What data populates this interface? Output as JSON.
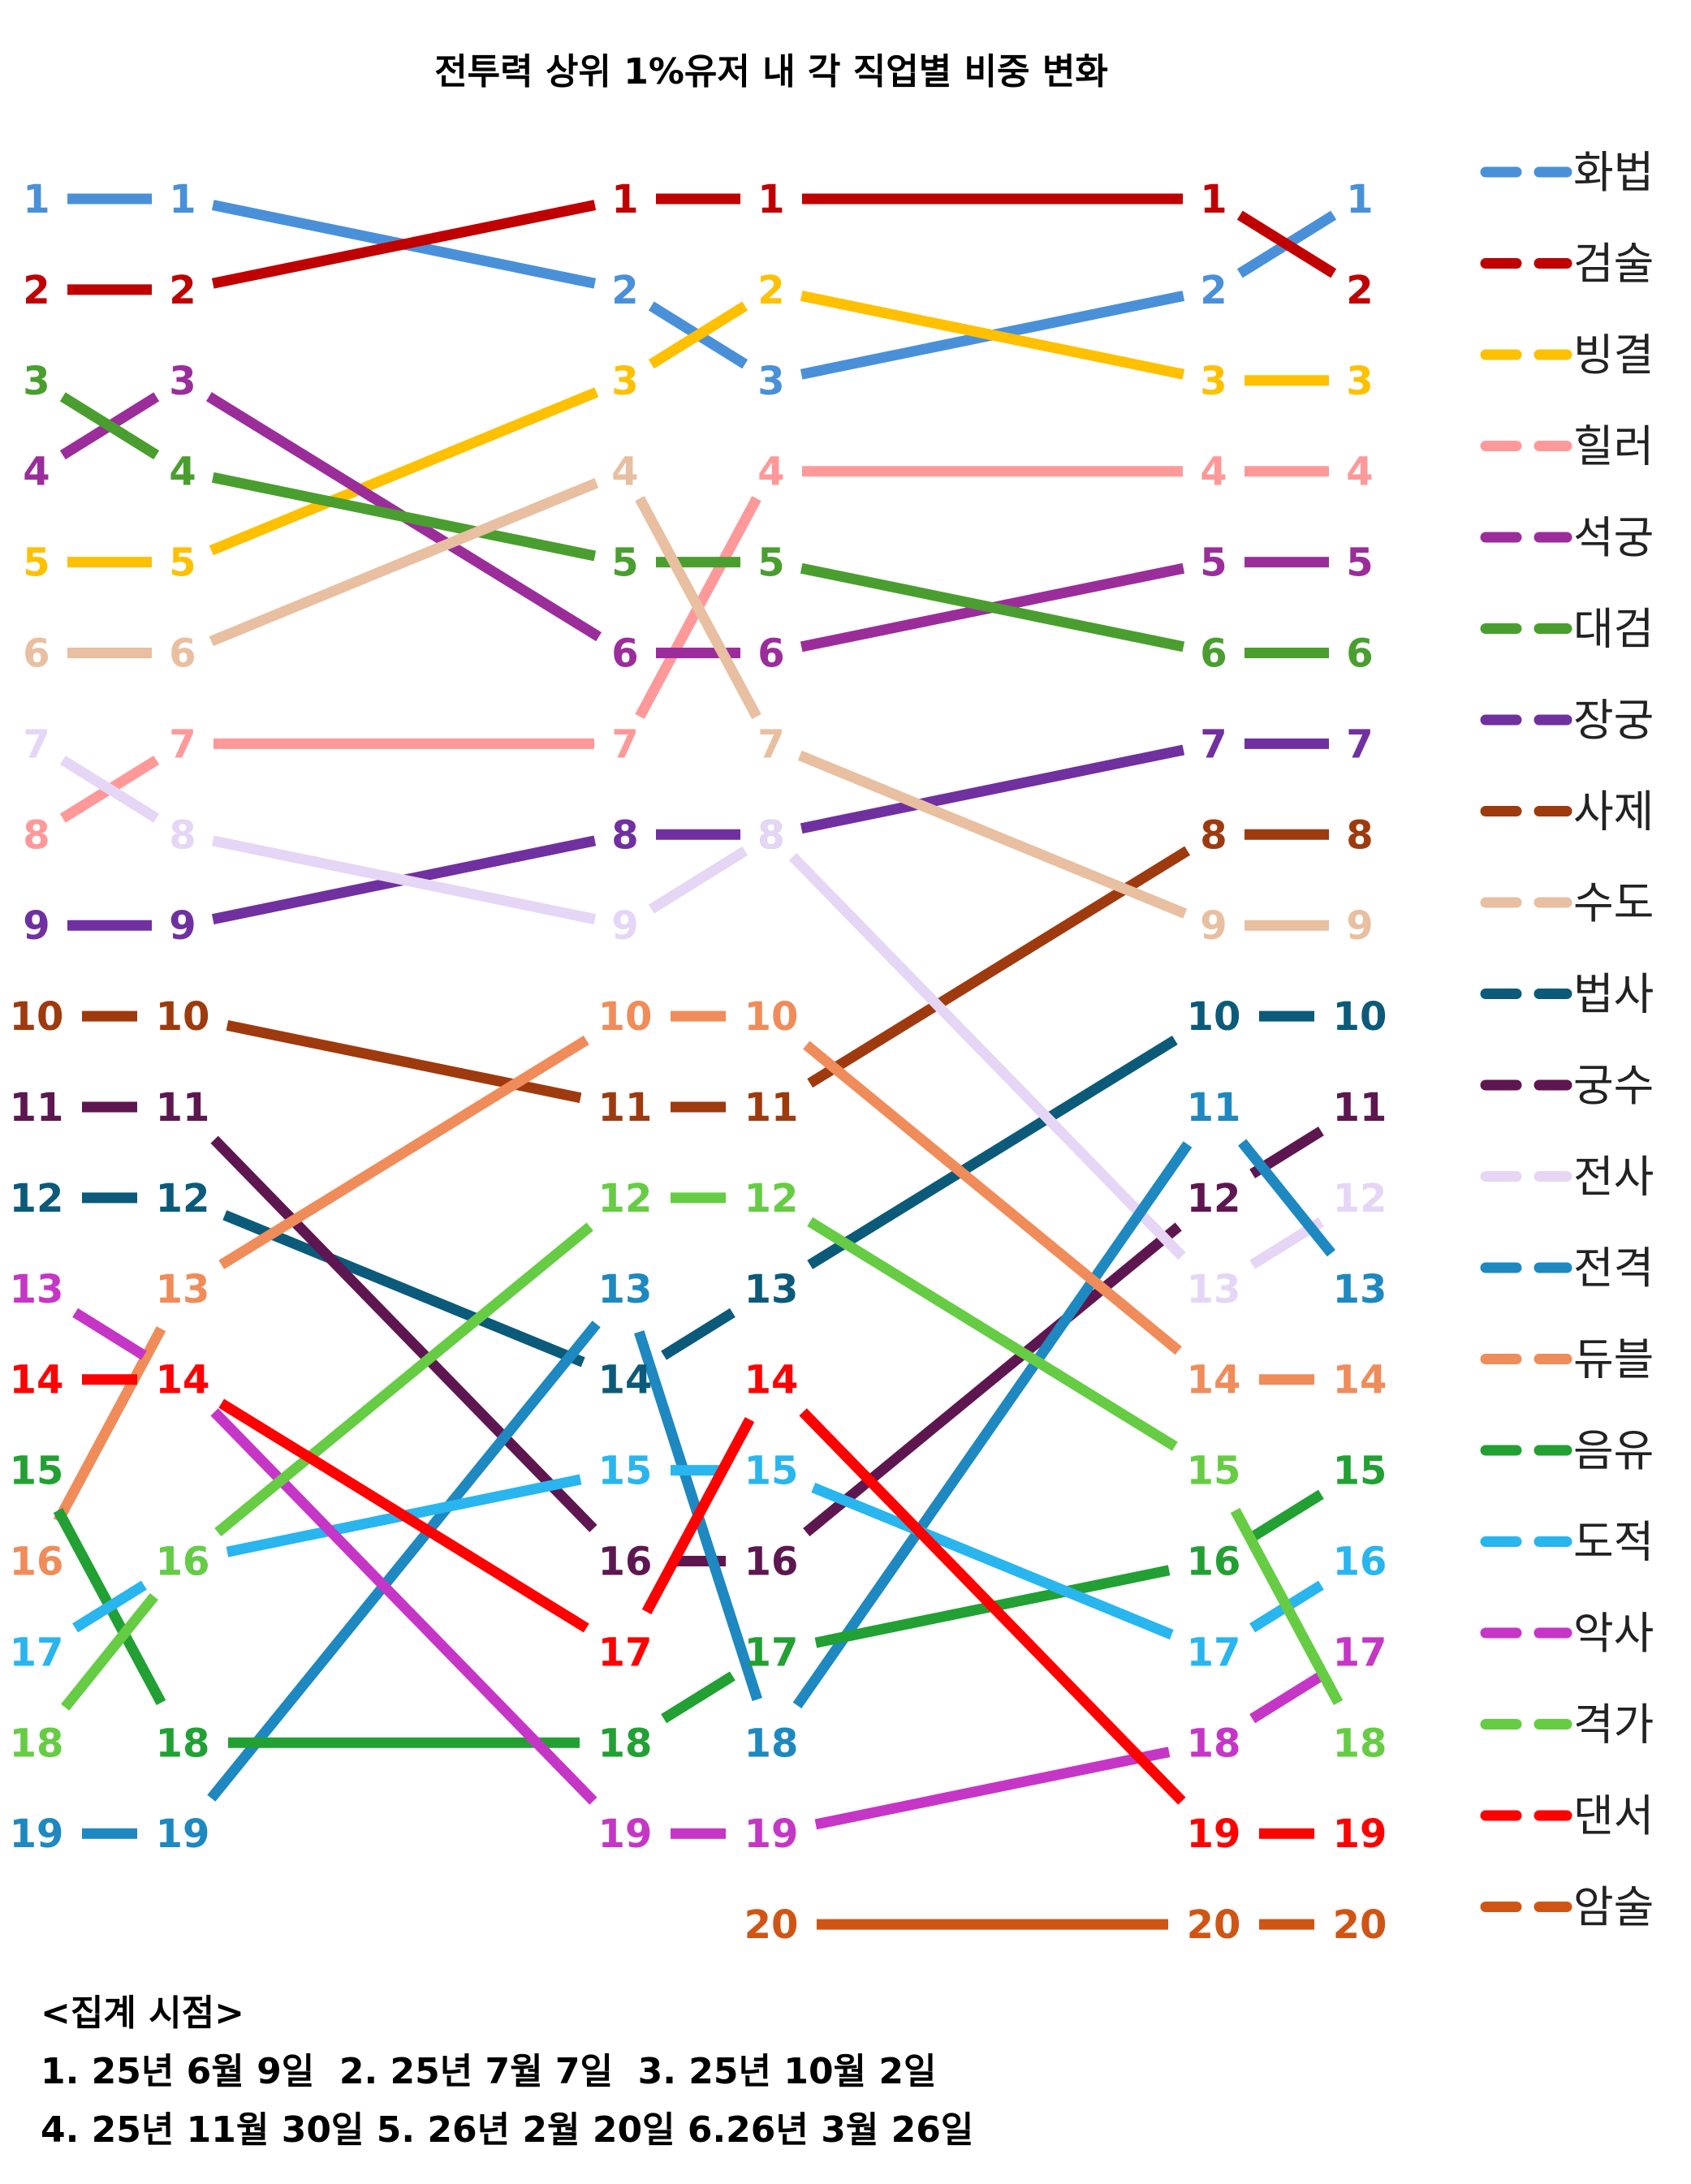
{
  "chart_data": {
    "type": "line",
    "title": "전투력 상위 1%유저 내 각 직업별 비중 변화",
    "x": [
      "1",
      "2",
      "3",
      "4",
      "5",
      "6"
    ],
    "y_axis": "rank",
    "ylim": [
      1,
      20
    ],
    "grid": false,
    "legend_position": "right",
    "series": [
      {
        "name": "화법",
        "color": "#4A90D9",
        "values": [
          1,
          1,
          2,
          3,
          2,
          1
        ]
      },
      {
        "name": "검술",
        "color": "#C00000",
        "values": [
          2,
          2,
          1,
          1,
          1,
          2
        ]
      },
      {
        "name": "빙결",
        "color": "#FFC000",
        "values": [
          5,
          5,
          3,
          2,
          3,
          3
        ]
      },
      {
        "name": "힐러",
        "color": "#FF9999",
        "values": [
          8,
          7,
          7,
          4,
          4,
          4
        ]
      },
      {
        "name": "석궁",
        "color": "#9B2D9B",
        "values": [
          4,
          3,
          6,
          6,
          5,
          5
        ]
      },
      {
        "name": "대검",
        "color": "#4A9E2F",
        "values": [
          3,
          4,
          5,
          5,
          6,
          6
        ]
      },
      {
        "name": "장궁",
        "color": "#7030A0",
        "values": [
          9,
          9,
          8,
          8,
          7,
          7
        ]
      },
      {
        "name": "사제",
        "color": "#9E3A0E",
        "values": [
          10,
          10,
          11,
          11,
          8,
          8
        ]
      },
      {
        "name": "수도",
        "color": "#E8BFA0",
        "values": [
          6,
          6,
          4,
          7,
          9,
          9
        ]
      },
      {
        "name": "법사",
        "color": "#0B5A7A",
        "values": [
          12,
          12,
          14,
          13,
          10,
          10
        ]
      },
      {
        "name": "궁수",
        "color": "#5E1650",
        "values": [
          11,
          11,
          16,
          16,
          12,
          11
        ]
      },
      {
        "name": "전사",
        "color": "#E6D6F5",
        "values": [
          7,
          8,
          9,
          8,
          13,
          12
        ]
      },
      {
        "name": "전격",
        "color": "#1E88C0",
        "values": [
          19,
          19,
          13,
          18,
          11,
          13
        ]
      },
      {
        "name": "듀블",
        "color": "#F08C5A",
        "values": [
          16,
          13,
          10,
          10,
          14,
          14
        ]
      },
      {
        "name": "음유",
        "color": "#22A033",
        "values": [
          15,
          18,
          18,
          17,
          16,
          15
        ]
      },
      {
        "name": "도적",
        "color": "#29B5EE",
        "values": [
          17,
          16,
          15,
          15,
          17,
          16
        ]
      },
      {
        "name": "악사",
        "color": "#C636C6",
        "values": [
          13,
          14,
          19,
          19,
          18,
          17
        ]
      },
      {
        "name": "격가",
        "color": "#66CC44",
        "values": [
          18,
          16,
          12,
          12,
          15,
          18
        ]
      },
      {
        "name": "댄서",
        "color": "#FF0000",
        "values": [
          14,
          14,
          17,
          14,
          19,
          19
        ]
      },
      {
        "name": "암술",
        "color": "#D05514",
        "values": [
          null,
          null,
          null,
          20,
          20,
          20
        ]
      }
    ]
  },
  "footer": {
    "heading": "<집계 시점>",
    "line1": "1. 25년 6월 9일  2. 25년 7월 7일  3. 25년 10월 2일",
    "line2": "4. 25년 11월 30일 5. 26년 2월 20일 6.26년 3월 26일"
  }
}
